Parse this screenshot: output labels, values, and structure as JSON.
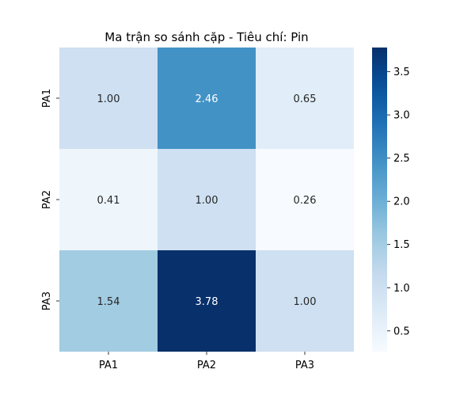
{
  "chart_data": {
    "type": "heatmap",
    "title": "Ma trận so sánh cặp - Tiêu chí: Pin",
    "x_categories": [
      "PA1",
      "PA2",
      "PA3"
    ],
    "y_categories": [
      "PA1",
      "PA2",
      "PA3"
    ],
    "matrix": [
      [
        1.0,
        2.46,
        0.65
      ],
      [
        0.41,
        1.0,
        0.26
      ],
      [
        1.54,
        3.78,
        1.0
      ]
    ],
    "annotations": [
      [
        "1.00",
        "2.46",
        "0.65"
      ],
      [
        "0.41",
        "1.00",
        "0.26"
      ],
      [
        "1.54",
        "3.78",
        "1.00"
      ]
    ],
    "colormap": "Blues",
    "color_range": [
      0.26,
      3.78
    ],
    "colorbar": {
      "ticks": [
        0.5,
        1.0,
        1.5,
        2.0,
        2.5,
        3.0,
        3.5
      ],
      "tick_labels": [
        "0.5",
        "1.0",
        "1.5",
        "2.0",
        "2.5",
        "3.0",
        "3.5"
      ]
    },
    "xlabel": "",
    "ylabel": ""
  }
}
